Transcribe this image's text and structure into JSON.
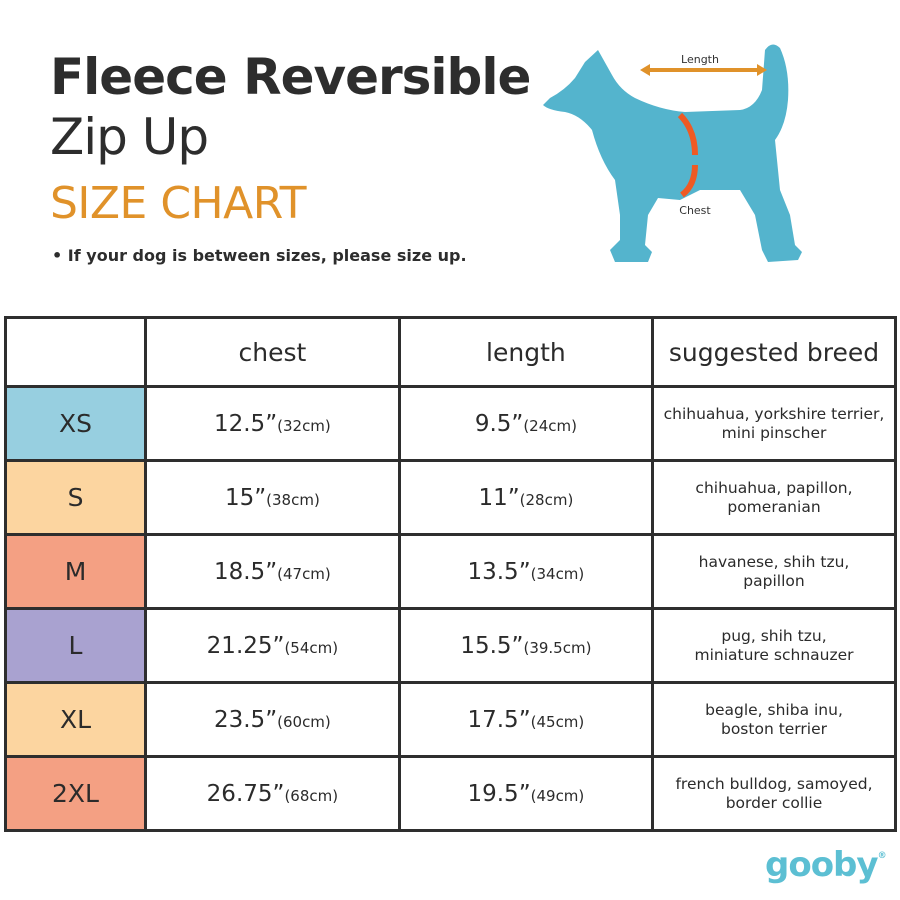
{
  "title": {
    "line1": "Fleece Reversible",
    "line2": "Zip Up",
    "line3": "SIZE CHART"
  },
  "note": "• If your dog is between sizes, please size up.",
  "diagram": {
    "length_label": "Length",
    "chest_label": "Chest",
    "dog_color": "#54b4cd",
    "arrow_length_color": "#e0922a",
    "arrow_chest_color": "#ef5a24"
  },
  "table": {
    "headers": [
      "",
      "chest",
      "length",
      "suggested breed"
    ],
    "rows": [
      {
        "size": "XS",
        "color": "#97cfe0",
        "chest": "12.5”",
        "chest_cm": "(32cm)",
        "length": "9.5”",
        "length_cm": "(24cm)",
        "breed1": "chihuahua, yorkshire terrier,",
        "breed2": "mini pinscher"
      },
      {
        "size": "S",
        "color": "#fcd5a0",
        "chest": "15”",
        "chest_cm": "(38cm)",
        "length": "11”",
        "length_cm": "(28cm)",
        "breed1": "chihuahua, papillon,",
        "breed2": "pomeranian"
      },
      {
        "size": "M",
        "color": "#f4a083",
        "chest": "18.5”",
        "chest_cm": "(47cm)",
        "length": "13.5”",
        "length_cm": "(34cm)",
        "breed1": "havanese, shih tzu,",
        "breed2": "papillon"
      },
      {
        "size": "L",
        "color": "#a9a2d0",
        "chest": "21.25”",
        "chest_cm": "(54cm)",
        "length": "15.5”",
        "length_cm": "(39.5cm)",
        "breed1": "pug, shih tzu,",
        "breed2": "miniature schnauzer"
      },
      {
        "size": "XL",
        "color": "#fcd5a0",
        "chest": "23.5”",
        "chest_cm": "(60cm)",
        "length": "17.5”",
        "length_cm": "(45cm)",
        "breed1": "beagle, shiba inu,",
        "breed2": "boston terrier"
      },
      {
        "size": "2XL",
        "color": "#f4a083",
        "chest": "26.75”",
        "chest_cm": "(68cm)",
        "length": "19.5”",
        "length_cm": "(49cm)",
        "breed1": "french bulldog, samoyed,",
        "breed2": "border collie"
      }
    ]
  },
  "brand": {
    "name": "gooby",
    "mark": "®",
    "color": "#5cbfd3"
  }
}
